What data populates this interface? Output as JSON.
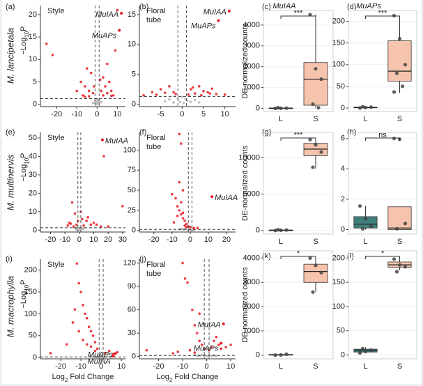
{
  "row_labels": [
    "M. lancipetala",
    "M. multinervis",
    "M. macrophylla"
  ],
  "chart_data": [
    {
      "type": "volcano",
      "panel": "(a)",
      "note": [
        "Style"
      ],
      "y_label_parts": [
        "−Log",
        "10",
        "P"
      ],
      "xlim": [
        -28,
        14
      ],
      "ylim": [
        -0.5,
        22
      ],
      "xticks": [
        -20,
        -10,
        0,
        10
      ],
      "yticks": [
        0,
        5,
        10,
        15,
        20
      ],
      "hline": 1.3,
      "vlines": [
        -1,
        1
      ],
      "series": [
        {
          "color": "#b5b5b5",
          "x": [
            -2,
            -1.2,
            -0.9,
            -0.5,
            -0.3,
            0,
            0.3,
            0.5,
            0.6,
            0.8,
            1.1,
            2
          ],
          "y": [
            0.3,
            0.4,
            0.8,
            0.5,
            0.1,
            1.2,
            1,
            0.3,
            0.9,
            0.2,
            0.6,
            0.5
          ]
        },
        {
          "color": "#e8191f",
          "x": [
            -25,
            -22,
            -10,
            -8,
            -7,
            -6,
            -5,
            -4,
            -3,
            -2,
            -1.5,
            1.5,
            2,
            3,
            4,
            5,
            6,
            7,
            8,
            9,
            10,
            -4,
            3,
            5,
            -6,
            7
          ],
          "y": [
            13.5,
            11,
            3,
            5,
            2,
            4,
            8,
            3,
            7,
            2.5,
            4,
            5.5,
            3,
            6,
            4,
            9,
            5,
            3,
            2,
            12,
            21,
            1.8,
            2,
            2.5,
            1.7,
            1.9
          ]
        }
      ],
      "annotations": [
        {
          "text": "MuIAA",
          "x": 12,
          "y": 20.3
        },
        {
          "text": "MuAPs",
          "x": 11,
          "y": 16.5
        }
      ]
    },
    {
      "type": "volcano",
      "panel": "(b)",
      "note": [
        "Floral",
        "tube"
      ],
      "xlim": [
        -10,
        12.5
      ],
      "ylim": [
        -0.4,
        16.5
      ],
      "xticks": [
        -5,
        0,
        5,
        10
      ],
      "yticks": [
        0,
        5,
        10,
        15
      ],
      "hline": 1.3,
      "vlines": [
        -1,
        1
      ],
      "series": [
        {
          "color": "#b5b5b5",
          "x": [
            -4,
            -3,
            -2,
            -1,
            -0.5,
            0,
            0.4,
            0.8,
            1.2,
            2,
            3,
            4
          ],
          "y": [
            0.5,
            0.8,
            0.3,
            1,
            0.4,
            1.2,
            0.2,
            0.9,
            0.6,
            0.4,
            0.7,
            0.3
          ]
        },
        {
          "color": "#e8191f",
          "x": [
            -9,
            -7,
            -6,
            -5,
            -3,
            -2,
            -1.5,
            1.5,
            2,
            3,
            4,
            5,
            6,
            7,
            8,
            10,
            -4,
            2.5,
            4.5,
            6.5
          ],
          "y": [
            1.5,
            2,
            1.6,
            2.5,
            3,
            2,
            1.7,
            1.6,
            2.5,
            1.8,
            3,
            2.2,
            2,
            2.6,
            1.7,
            1.6,
            1.9,
            2.8,
            1.5,
            1.8
          ]
        }
      ],
      "annotations": [
        {
          "text": "MuIAA",
          "x": 11,
          "y": 15.6
        },
        {
          "text": "MuAPs",
          "x": 8.5,
          "y": 14
        }
      ]
    },
    {
      "type": "box",
      "panel": "(c)",
      "title": "MuIAA",
      "y_label": "DE-normalized counts",
      "significance": "***",
      "categories": [
        "L",
        "S"
      ],
      "ylim": [
        -150,
        4700
      ],
      "yticks": [
        0,
        1000,
        2000,
        3000,
        4000
      ],
      "boxes": [
        {
          "color": "#3f7f7b",
          "min": 0,
          "q1": 5,
          "median": 10,
          "q3": 20,
          "max": 40,
          "points": [
            0,
            5,
            10,
            30
          ]
        },
        {
          "color": "#f6c4ad",
          "min": 30,
          "q1": 150,
          "median": 1400,
          "q3": 2200,
          "max": 4500,
          "points": [
            4500,
            1900,
            1400,
            200,
            30
          ]
        }
      ]
    },
    {
      "type": "box",
      "panel": "(d)",
      "title": "MuAPs",
      "significance": "***",
      "categories": [
        "L",
        "S"
      ],
      "ylim": [
        -8,
        225
      ],
      "yticks": [
        0,
        50,
        100,
        150,
        200
      ],
      "boxes": [
        {
          "color": "#3f7f7b",
          "min": 0,
          "q1": 0.5,
          "median": 1,
          "q3": 2,
          "max": 3,
          "points": [
            0,
            1,
            2,
            3
          ]
        },
        {
          "color": "#f6c4ad",
          "min": 35,
          "q1": 62,
          "median": 85,
          "q3": 155,
          "max": 213,
          "points": [
            213,
            160,
            100,
            80,
            50,
            37
          ]
        }
      ]
    },
    {
      "type": "volcano",
      "panel": "(e)",
      "note": [
        "Style"
      ],
      "y_label_parts": [
        "−Log",
        "10",
        "P"
      ],
      "xlim": [
        -27,
        32
      ],
      "ylim": [
        -1,
        53
      ],
      "xticks": [
        -20,
        -10,
        0,
        10,
        20,
        30
      ],
      "yticks": [
        0,
        10,
        20,
        30,
        40,
        50
      ],
      "hline": 1.3,
      "vlines": [
        -1,
        1
      ],
      "series": [
        {
          "color": "#b5b5b5",
          "x": [
            -3,
            -2,
            -1,
            -0.5,
            0,
            0.5,
            1,
            2,
            3,
            -1.5
          ],
          "y": [
            1,
            0.5,
            1.2,
            0.3,
            0.8,
            0.4,
            1,
            0.6,
            0.9,
            0.2
          ]
        },
        {
          "color": "#e8191f",
          "x": [
            -8,
            -7,
            -5,
            -4,
            -3,
            -2,
            -1,
            1,
            2,
            3,
            5,
            6,
            8,
            10,
            12,
            15,
            17,
            20,
            30,
            -6
          ],
          "y": [
            2.5,
            4,
            15,
            2,
            9,
            3,
            5,
            10,
            6,
            2.5,
            5,
            7,
            3,
            4,
            3,
            2,
            40,
            2,
            13,
            3.5
          ]
        }
      ],
      "annotations": [
        {
          "text": "MuIAA",
          "x": 16,
          "y": 49
        }
      ]
    },
    {
      "type": "volcano",
      "panel": "(f)",
      "note": [
        "Floral",
        "tube"
      ],
      "xlim": [
        -28,
        25
      ],
      "ylim": [
        -2,
        122
      ],
      "xticks": [
        -20,
        -10,
        0,
        10,
        20
      ],
      "yticks": [
        0,
        25,
        50,
        75,
        100
      ],
      "hline": 1.3,
      "vlines": [
        -1,
        1
      ],
      "series": [
        {
          "color": "#b5b5b5",
          "x": [
            -4,
            -3,
            -2,
            -1,
            0,
            0.5,
            1,
            2,
            -5,
            -6
          ],
          "y": [
            1,
            2,
            1.5,
            0.5,
            1,
            0.3,
            1.2,
            0.6,
            2,
            1.5
          ]
        },
        {
          "color": "#e8191f",
          "x": [
            -6,
            -5,
            -8,
            -7,
            -6,
            -5,
            -4,
            -3,
            -2,
            -1,
            -9,
            -7,
            -5,
            -4,
            -3,
            0,
            2,
            4,
            -10,
            -6,
            -4,
            -2
          ],
          "y": [
            120,
            108,
            40,
            30,
            25,
            20,
            15,
            12,
            8,
            5,
            10,
            18,
            35,
            22,
            6,
            4,
            3,
            3,
            45,
            60,
            50,
            4
          ]
        }
      ],
      "annotations": [
        {
          "text": "MuIAA",
          "x": 12,
          "y": 42
        }
      ]
    },
    {
      "type": "box",
      "panel": "(g)",
      "y_label": "DE-normalized counts",
      "significance": "***",
      "categories": [
        "L",
        "S"
      ],
      "ylim": [
        -500,
        13500
      ],
      "yticks": [
        0,
        5000,
        10000
      ],
      "boxes": [
        {
          "color": "#3f7f7b",
          "min": 0,
          "q1": 20,
          "median": 40,
          "q3": 60,
          "max": 100,
          "points": [
            0,
            30,
            60,
            100
          ]
        },
        {
          "color": "#f6c4ad",
          "min": 8500,
          "q1": 10300,
          "median": 11200,
          "q3": 12000,
          "max": 12500,
          "points": [
            12500,
            11800,
            10800,
            8700
          ]
        }
      ]
    },
    {
      "type": "box",
      "panel": "(h)",
      "significance": "ns",
      "categories": [
        "L",
        "S"
      ],
      "ylim": [
        -0.3,
        6.4
      ],
      "yticks": [
        0,
        2,
        4,
        6
      ],
      "boxes": [
        {
          "color": "#3f7f7b",
          "min": 0,
          "q1": 0.1,
          "median": 0.35,
          "q3": 0.85,
          "max": 1.55,
          "points": [
            1.55,
            0.7,
            0.2,
            0.05
          ]
        },
        {
          "color": "#f6c4ad",
          "min": 0,
          "q1": 0,
          "median": 0.1,
          "q3": 1.5,
          "max": 1.5,
          "points": [
            6,
            5.95,
            0.4,
            0.05
          ]
        }
      ]
    },
    {
      "type": "volcano",
      "panel": "(i)",
      "note": [
        "Style"
      ],
      "y_label_parts": [
        "−Log",
        "10",
        "P"
      ],
      "x_label_parts": [
        "Log",
        "2",
        " Fold Change"
      ],
      "xlim": [
        -30,
        12
      ],
      "ylim": [
        -3,
        225
      ],
      "xticks": [
        -20,
        -10,
        0,
        10
      ],
      "yticks": [
        0,
        50,
        100,
        150,
        200
      ],
      "hline": 1.3,
      "vlines": [
        -1,
        1
      ],
      "series": [
        {
          "color": "#b5b5b5",
          "x": [
            -3,
            -2,
            -1,
            0,
            1,
            2,
            3,
            -4,
            5,
            -6
          ],
          "y": [
            2,
            1,
            3,
            1.5,
            2,
            1,
            2.5,
            1,
            1,
            3
          ]
        },
        {
          "color": "#e8191f",
          "x": [
            -12,
            -11,
            -10,
            -9,
            -8,
            -7,
            -6,
            -5,
            -4,
            -3,
            -2,
            -14,
            -13,
            -11,
            -9,
            -7,
            -5,
            -3,
            2,
            4,
            6,
            8,
            -25,
            -17
          ],
          "y": [
            215,
            170,
            150,
            120,
            100,
            90,
            70,
            60,
            50,
            35,
            20,
            80,
            110,
            60,
            40,
            30,
            25,
            15,
            10,
            15,
            8,
            12,
            10,
            30
          ]
        }
      ],
      "annotations": [
        {
          "text": "MuAPs",
          "x": 7,
          "y": 9
        },
        {
          "text": "MuIAA",
          "x": 6,
          "y": 3
        }
      ]
    },
    {
      "type": "volcano",
      "panel": "(j)",
      "note": [
        "Floral",
        "tube"
      ],
      "x_label_parts": [
        "Log",
        "2",
        " Fold Change"
      ],
      "xlim": [
        -28,
        12
      ],
      "ylim": [
        -3,
        125
      ],
      "xticks": [
        -20,
        -10,
        0,
        10
      ],
      "yticks": [
        0,
        30,
        60,
        90,
        120
      ],
      "hline": 1.3,
      "vlines": [
        -1,
        1
      ],
      "series": [
        {
          "color": "#b5b5b5",
          "x": [
            -3,
            -2,
            -1,
            0,
            1,
            2,
            3,
            -4,
            4,
            -5
          ],
          "y": [
            1,
            2,
            1.5,
            0.5,
            1.2,
            0.8,
            1.5,
            1,
            0.6,
            2
          ]
        },
        {
          "color": "#e8191f",
          "x": [
            -10,
            -9,
            -8,
            -6,
            -5,
            -4,
            -3,
            -2,
            -1,
            1,
            2,
            3,
            4,
            5,
            6,
            8,
            -12,
            -14,
            -7,
            -5,
            -25,
            10,
            -3
          ],
          "y": [
            120,
            100,
            95,
            60,
            40,
            30,
            20,
            15,
            10,
            8,
            12,
            20,
            25,
            15,
            10,
            12,
            6,
            4,
            8,
            5,
            8,
            15,
            55
          ]
        }
      ],
      "annotations": [
        {
          "text": "MuIAA",
          "x": 7,
          "y": 42
        },
        {
          "text": "MuAPs",
          "x": 6,
          "y": 17
        }
      ]
    },
    {
      "type": "box",
      "panel": "(k)",
      "y_label": "DE-normalized counts",
      "significance": "*",
      "categories": [
        "L",
        "S"
      ],
      "ylim": [
        -150,
        4300
      ],
      "yticks": [
        0,
        1000,
        2000,
        3000,
        4000
      ],
      "boxes": [
        {
          "color": "#3f7f7b",
          "min": 0,
          "q1": 5,
          "median": 15,
          "q3": 30,
          "max": 40,
          "points": [
            0,
            10,
            40
          ]
        },
        {
          "color": "#f6c4ad",
          "min": 2600,
          "q1": 3000,
          "median": 3450,
          "q3": 3750,
          "max": 4050,
          "points": [
            4000,
            3700,
            3400,
            2600
          ]
        }
      ]
    },
    {
      "type": "box",
      "panel": "(l)",
      "significance": "*",
      "categories": [
        "L",
        "S"
      ],
      "ylim": [
        -8,
        215
      ],
      "yticks": [
        0,
        50,
        100,
        150,
        200
      ],
      "boxes": [
        {
          "color": "#3f7f7b",
          "min": 4,
          "q1": 6,
          "median": 9,
          "q3": 12,
          "max": 16,
          "points": [
            4,
            7,
            10,
            13
          ]
        },
        {
          "color": "#f6c4ad",
          "min": 175,
          "q1": 181,
          "median": 186,
          "q3": 192,
          "max": 200,
          "points": [
            198,
            186,
            182,
            172
          ]
        }
      ]
    }
  ]
}
